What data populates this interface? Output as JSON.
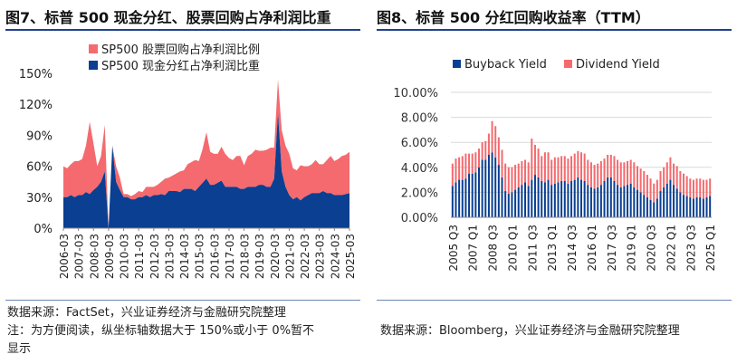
{
  "left": {
    "title": "图7、标普 500 现金分红、股票回购占净利润比重",
    "source": "数据来源：FactSet，兴业证券经济与金融研究院整理",
    "note_line1": "注：为方便阅读，纵坐标轴数据大于 150%或小于 0%暂不",
    "note_line2": "显示",
    "colors": {
      "buyback": "#f46a6e",
      "dividend": "#0a3f91"
    }
  },
  "right": {
    "title": "图8、标普 500 分红回购收益率（TTM）",
    "source": "数据来源：Bloomberg，兴业证券经济与金融研究院整理",
    "colors": {
      "buyback": "#0a3f91",
      "dividend": "#f46a6e"
    }
  },
  "chart_data": [
    {
      "type": "area",
      "stacked": true,
      "ylim": [
        0,
        150
      ],
      "yticks": [
        "0%",
        "30%",
        "60%",
        "90%",
        "120%",
        "150%"
      ],
      "ytick_values": [
        0,
        30,
        60,
        90,
        120,
        150
      ],
      "xticks": [
        "2006-03",
        "2007-03",
        "2008-03",
        "2009-03",
        "2010-03",
        "2011-03",
        "2012-03",
        "2013-03",
        "2014-03",
        "2015-03",
        "2016-03",
        "2017-03",
        "2018-03",
        "2019-03",
        "2020-03",
        "2021-03",
        "2022-03",
        "2023-03",
        "2024-03",
        "2025-03"
      ],
      "x": [
        2006.0,
        2006.25,
        2006.5,
        2006.75,
        2007.0,
        2007.25,
        2007.5,
        2007.75,
        2008.0,
        2008.25,
        2008.5,
        2008.75,
        2009.0,
        2009.25,
        2009.5,
        2009.75,
        2010.0,
        2010.25,
        2010.5,
        2010.75,
        2011.0,
        2011.25,
        2011.5,
        2011.75,
        2012.0,
        2012.25,
        2012.5,
        2012.75,
        2013.0,
        2013.25,
        2013.5,
        2013.75,
        2014.0,
        2014.25,
        2014.5,
        2014.75,
        2015.0,
        2015.25,
        2015.5,
        2015.75,
        2016.0,
        2016.25,
        2016.5,
        2016.75,
        2017.0,
        2017.25,
        2017.5,
        2017.75,
        2018.0,
        2018.25,
        2018.5,
        2018.75,
        2019.0,
        2019.25,
        2019.5,
        2019.75,
        2020.0,
        2020.25,
        2020.5,
        2020.75,
        2021.0,
        2021.25,
        2021.5,
        2021.75,
        2022.0,
        2022.25,
        2022.5,
        2022.75,
        2023.0,
        2023.25,
        2023.5,
        2023.75,
        2024.0,
        2024.25,
        2024.5,
        2024.75,
        2025.0
      ],
      "series": [
        {
          "name": "SP500 股票回购占净利润比例",
          "values": [
            30,
            28,
            30,
            35,
            33,
            35,
            45,
            70,
            45,
            20,
            25,
            45,
            0,
            0,
            15,
            12,
            3,
            3,
            3,
            5,
            6,
            5,
            8,
            10,
            8,
            10,
            12,
            16,
            13,
            15,
            17,
            20,
            18,
            24,
            26,
            30,
            25,
            33,
            45,
            32,
            30,
            28,
            33,
            32,
            28,
            26,
            30,
            32,
            23,
            30,
            32,
            36,
            33,
            33,
            36,
            38,
            30,
            32,
            40,
            40,
            40,
            30,
            26,
            34,
            30,
            28,
            28,
            32,
            28,
            26,
            32,
            36,
            33,
            35,
            38,
            38,
            40
          ]
        },
        {
          "name": "SP500 现金分红占净利润比重",
          "values": [
            30,
            30,
            32,
            30,
            32,
            32,
            35,
            33,
            37,
            40,
            45,
            55,
            0,
            80,
            45,
            37,
            30,
            30,
            28,
            28,
            30,
            30,
            32,
            30,
            32,
            32,
            33,
            32,
            36,
            36,
            36,
            35,
            38,
            38,
            38,
            36,
            40,
            44,
            48,
            42,
            42,
            44,
            46,
            40,
            40,
            40,
            40,
            38,
            38,
            40,
            40,
            40,
            42,
            42,
            40,
            40,
            48,
            112,
            55,
            40,
            32,
            28,
            30,
            27,
            30,
            32,
            34,
            34,
            34,
            36,
            34,
            34,
            32,
            32,
            32,
            33,
            34
          ]
        }
      ]
    },
    {
      "type": "bar",
      "stacked": true,
      "ylim": [
        0,
        10
      ],
      "yticks": [
        "0.00%",
        "2.00%",
        "4.00%",
        "6.00%",
        "8.00%",
        "10.00%"
      ],
      "ytick_values": [
        0,
        2,
        4,
        6,
        8,
        10
      ],
      "xticks": [
        "2005 Q3",
        "2007 Q1",
        "2008 Q3",
        "2010 Q1",
        "2011 Q3",
        "2013 Q1",
        "2014 Q3",
        "2016 Q1",
        "2017 Q3",
        "2019 Q1",
        "2020 Q3",
        "2022 Q1",
        "2023 Q3",
        "2025 Q1"
      ],
      "xtick_index": [
        0,
        6,
        12,
        18,
        24,
        30,
        36,
        42,
        48,
        54,
        60,
        66,
        72,
        78
      ],
      "series": [
        {
          "name": "Buyback Yield",
          "values": [
            2.5,
            2.8,
            3.0,
            3.0,
            3.1,
            3.5,
            3.5,
            3.6,
            4.0,
            4.6,
            4.6,
            5.0,
            5.2,
            4.8,
            4.2,
            3.2,
            2.1,
            1.9,
            2.0,
            2.2,
            2.4,
            2.6,
            2.8,
            2.5,
            3.0,
            3.4,
            3.2,
            2.9,
            2.8,
            3.0,
            2.6,
            2.7,
            2.8,
            2.9,
            2.9,
            2.7,
            2.9,
            3.0,
            3.2,
            3.0,
            2.9,
            2.6,
            2.4,
            2.3,
            2.4,
            2.6,
            2.9,
            3.2,
            3.2,
            2.9,
            2.6,
            2.4,
            2.5,
            2.6,
            2.7,
            2.4,
            2.2,
            2.0,
            1.8,
            1.6,
            1.4,
            1.2,
            1.5,
            2.1,
            2.4,
            2.7,
            3.0,
            2.6,
            2.3,
            2.0,
            1.8,
            1.7,
            1.6,
            1.5,
            1.6,
            1.6,
            1.5,
            1.6,
            1.7
          ]
        },
        {
          "name": "Dividend Yield",
          "values": [
            1.8,
            1.9,
            1.8,
            1.9,
            2.0,
            1.6,
            1.6,
            1.6,
            1.5,
            1.4,
            1.5,
            1.7,
            2.5,
            2.5,
            2.2,
            2.2,
            2.2,
            2.1,
            2.0,
            2.0,
            1.9,
            1.9,
            1.8,
            1.9,
            3.3,
            2.4,
            2.3,
            2.0,
            2.4,
            2.2,
            2.0,
            2.1,
            2.0,
            2.0,
            2.0,
            2.0,
            2.0,
            2.1,
            2.1,
            2.2,
            2.2,
            2.0,
            2.0,
            1.9,
            1.9,
            1.9,
            1.8,
            1.8,
            1.8,
            2.0,
            2.0,
            2.0,
            1.9,
            1.9,
            1.9,
            2.0,
            1.9,
            1.9,
            1.9,
            1.8,
            1.7,
            1.5,
            1.5,
            1.6,
            1.6,
            1.7,
            1.8,
            1.7,
            1.8,
            1.7,
            1.7,
            1.6,
            1.5,
            1.5,
            1.5,
            1.5,
            1.5,
            1.4,
            1.4
          ]
        }
      ]
    }
  ]
}
